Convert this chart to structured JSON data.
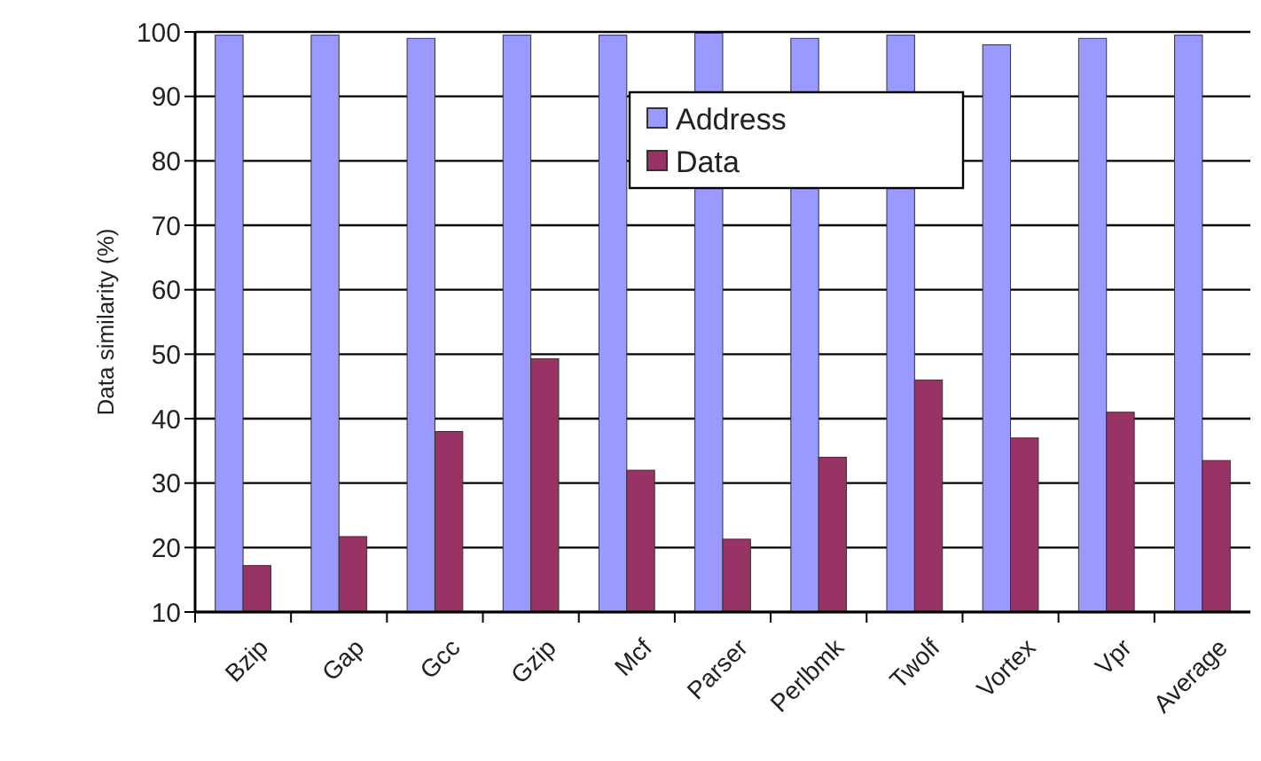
{
  "chart_data": {
    "type": "bar",
    "ylabel": "Data similarity (%)",
    "categories": [
      "Bzip",
      "Gap",
      "Gcc",
      "Gzip",
      "Mcf",
      "Parser",
      "Perlbmk",
      "Twolf",
      "Vortex",
      "Vpr",
      "Average"
    ],
    "series": [
      {
        "name": "Address",
        "color": "#9999ff",
        "values": [
          99.5,
          99.5,
          99,
          99.5,
          99.5,
          99.8,
          99,
          99.5,
          98,
          99,
          99.5
        ]
      },
      {
        "name": "Data",
        "color": "#993366",
        "values": [
          17.2,
          21.7,
          38,
          49.3,
          32,
          21.3,
          34,
          46,
          37,
          41,
          33.5
        ]
      }
    ],
    "ylim": [
      10,
      100
    ],
    "yticks": [
      10,
      20,
      30,
      40,
      50,
      60,
      70,
      80,
      90,
      100
    ],
    "grid": "y",
    "legend": "top"
  }
}
